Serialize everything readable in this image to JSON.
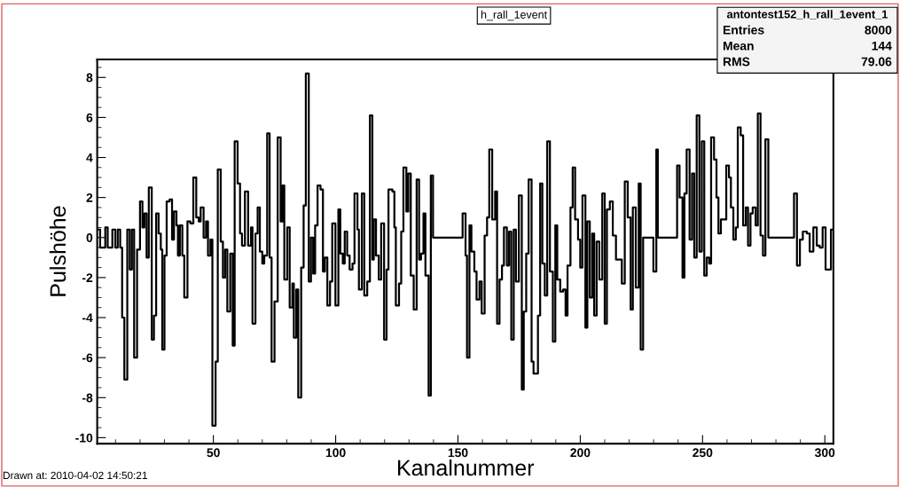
{
  "chart_data": {
    "type": "step",
    "title": "h_rall_1event",
    "xlabel": "Kanalnummer",
    "ylabel": "Pulshöhe",
    "xlim": [
      2.5,
      303.5
    ],
    "ylim": [
      -10.3,
      8.9
    ],
    "xticks": [
      50,
      100,
      150,
      200,
      250,
      300
    ],
    "yticks": [
      -10,
      -8,
      -6,
      -4,
      -2,
      0,
      2,
      4,
      6,
      8
    ],
    "grid": false,
    "marker": "none",
    "line_style": "solid",
    "series": [
      {
        "color": "#000000",
        "x": [
          2.5,
          3.7,
          5.8,
          6.8,
          8.7,
          9.9,
          10.9,
          11.9,
          12.7,
          13.6,
          14.8,
          15.8,
          16.7,
          17.6,
          18.8,
          20.0,
          21.0,
          21.8,
          22.7,
          23.6,
          24.8,
          25.7,
          26.6,
          27.6,
          28.5,
          29.1,
          30.0,
          30.9,
          32.1,
          33.1,
          33.9,
          34.9,
          35.5,
          36.3,
          37.3,
          38.1,
          39.4,
          40.6,
          41.8,
          43.0,
          44.0,
          44.8,
          46.0,
          47.0,
          47.8,
          48.8,
          49.6,
          50.9,
          51.8,
          53.0,
          53.9,
          54.8,
          55.7,
          56.9,
          57.9,
          58.7,
          59.9,
          60.9,
          61.7,
          62.9,
          64.2,
          65.4,
          66.0,
          67.2,
          68.1,
          69.0,
          70.0,
          70.8,
          72.0,
          73.0,
          73.8,
          75.0,
          76.3,
          77.5,
          78.3,
          79.0,
          80.2,
          81.2,
          82.3,
          82.9,
          83.9,
          84.7,
          85.9,
          86.9,
          87.8,
          89.0,
          89.9,
          90.8,
          91.6,
          92.6,
          93.8,
          94.8,
          95.6,
          96.6,
          97.7,
          98.6,
          99.9,
          101.1,
          101.9,
          102.9,
          103.7,
          104.7,
          105.7,
          106.9,
          107.7,
          108.9,
          109.5,
          110.7,
          111.7,
          112.9,
          114.0,
          115.0,
          115.6,
          116.5,
          117.6,
          118.6,
          119.8,
          120.8,
          121.6,
          123.2,
          124.0,
          124.6,
          125.9,
          126.8,
          127.7,
          128.9,
          129.7,
          130.7,
          131.9,
          133.1,
          134.1,
          134.9,
          135.9,
          136.7,
          138.0,
          138.9,
          139.8,
          151.9,
          153.1,
          153.7,
          154.7,
          155.5,
          156.7,
          157.6,
          158.8,
          159.7,
          160.9,
          161.9,
          162.8,
          164.0,
          165.2,
          166.0,
          167.0,
          168.0,
          168.8,
          170.0,
          170.9,
          171.8,
          172.8,
          173.7,
          174.9,
          176.1,
          176.9,
          177.9,
          178.9,
          180.1,
          180.9,
          182.7,
          183.6,
          184.5,
          185.5,
          186.5,
          187.6,
          188.8,
          189.8,
          190.6,
          191.8,
          193.0,
          194.0,
          194.8,
          196.0,
          196.9,
          197.9,
          199.1,
          200.0,
          200.9,
          202.1,
          202.9,
          203.9,
          204.9,
          205.7,
          206.7,
          207.8,
          209.0,
          210.0,
          210.9,
          212.1,
          213.3,
          214.6,
          217.0,
          218.2,
          219.4,
          220.6,
          221.5,
          222.7,
          223.9,
          224.7,
          225.7,
          229.9,
          231.1,
          231.7,
          239.6,
          240.6,
          241.8,
          242.6,
          243.5,
          244.7,
          245.7,
          246.6,
          247.6,
          248.7,
          249.7,
          250.7,
          251.7,
          252.7,
          253.5,
          254.7,
          255.7,
          256.5,
          257.5,
          259.7,
          260.8,
          261.6,
          262.6,
          263.6,
          264.4,
          265.6,
          266.6,
          267.7,
          268.6,
          269.6,
          270.5,
          271.7,
          272.6,
          273.7,
          274.7,
          275.7,
          276.9,
          287.4,
          288.6,
          289.8,
          291.0,
          292.6,
          293.8,
          295.3,
          296.7,
          297.9,
          299.1,
          300.3,
          302.5,
          303.5
        ],
        "values": [
          0.4,
          -0.5,
          0.5,
          -0.5,
          0.4,
          -0.5,
          0.4,
          -0.5,
          -4.0,
          -7.1,
          0.4,
          -1.6,
          0.4,
          -6.0,
          -0.6,
          1.8,
          0.5,
          1.2,
          -1.0,
          2.5,
          -5.1,
          -3.9,
          1.2,
          0.2,
          -0.6,
          -5.6,
          -0.9,
          1.8,
          1.9,
          -0.1,
          1.3,
          0.6,
          -0.9,
          0.6,
          -0.9,
          -3.0,
          0.8,
          0.7,
          3.0,
          1.0,
          0.8,
          1.5,
          0.0,
          0.8,
          -0.9,
          -0.1,
          -9.4,
          -6.2,
          3.4,
          -0.2,
          -2.0,
          -0.6,
          -3.7,
          -0.8,
          -5.4,
          4.8,
          2.7,
          0.2,
          -0.4,
          2.3,
          -0.4,
          0.5,
          -4.3,
          0.2,
          1.5,
          -0.7,
          -1.3,
          -0.9,
          5.2,
          -1.0,
          -6.2,
          -3.2,
          5.0,
          0.8,
          2.6,
          -2.1,
          0.5,
          -3.5,
          -2.3,
          -5.0,
          -2.6,
          -8.0,
          -1.5,
          1.6,
          8.2,
          -2.2,
          0.0,
          -1.8,
          0.6,
          2.6,
          2.4,
          -1.7,
          -1.0,
          -3.4,
          -2.2,
          0.7,
          -3.4,
          1.4,
          -0.8,
          -1.3,
          0.3,
          -0.9,
          -1.6,
          -1.3,
          2.2,
          0.4,
          -2.6,
          2.2,
          -2.9,
          -2.2,
          6.1,
          -1.1,
          0.9,
          -0.9,
          -2.1,
          0.7,
          -5.1,
          -1.6,
          2.4,
          2.3,
          0.5,
          -3.4,
          -2.3,
          0.3,
          3.5,
          1.3,
          3.2,
          -1.9,
          -3.6,
          2.9,
          -1.1,
          -0.8,
          1.2,
          -1.9,
          -7.9,
          3.1,
          0.0,
          1.2,
          -0.9,
          -6.0,
          0.6,
          -0.7,
          -1.7,
          -3.1,
          -2.2,
          -3.8,
          0.1,
          1.0,
          4.4,
          0.9,
          2.3,
          -4.3,
          -2.1,
          -1.4,
          0.5,
          -1.4,
          0.3,
          -5.1,
          0.4,
          -2.2,
          2.1,
          -7.6,
          -3.7,
          -0.8,
          2.9,
          -6.2,
          -6.8,
          -3.9,
          2.7,
          -1.3,
          -2.9,
          4.8,
          -1.7,
          -5.2,
          0.6,
          -2.1,
          -2.7,
          -2.6,
          -3.9,
          -1.4,
          1.5,
          3.5,
          0.9,
          -0.1,
          -1.5,
          2.1,
          -4.5,
          0.8,
          -3.0,
          0.2,
          -3.9,
          -0.2,
          -2.1,
          2.2,
          -4.3,
          1.4,
          1.8,
          0.1,
          -1.1,
          -2.3,
          2.8,
          1.0,
          -3.6,
          1.5,
          -2.5,
          2.7,
          -5.6,
          0.0,
          -1.7,
          4.4,
          0.0,
          3.6,
          2.0,
          -2.0,
          2.2,
          4.4,
          -0.1,
          3.2,
          -1.0,
          6.1,
          -0.7,
          4.8,
          -1.9,
          -1.0,
          -1.3,
          5.0,
          3.9,
          2.0,
          0.2,
          0.9,
          3.6,
          3.0,
          1.5,
          -0.1,
          0.5,
          5.5,
          5.1,
          0.6,
          1.5,
          -0.4,
          1.2,
          1.5,
          0.6,
          6.2,
          0.1,
          -0.9,
          4.9,
          0.0,
          2.2,
          -1.4,
          -0.1,
          0.3,
          0.2,
          -0.7,
          0.5,
          -0.4,
          -0.5,
          0.5,
          -1.6,
          0.4,
          0.4
        ]
      }
    ],
    "annotations": [
      "antontest152_h_rall_1event_1",
      "Entries 8000",
      "Mean 144",
      "RMS 79.06",
      "Drawn at: 2010-04-02 14:50:21"
    ]
  }
}
